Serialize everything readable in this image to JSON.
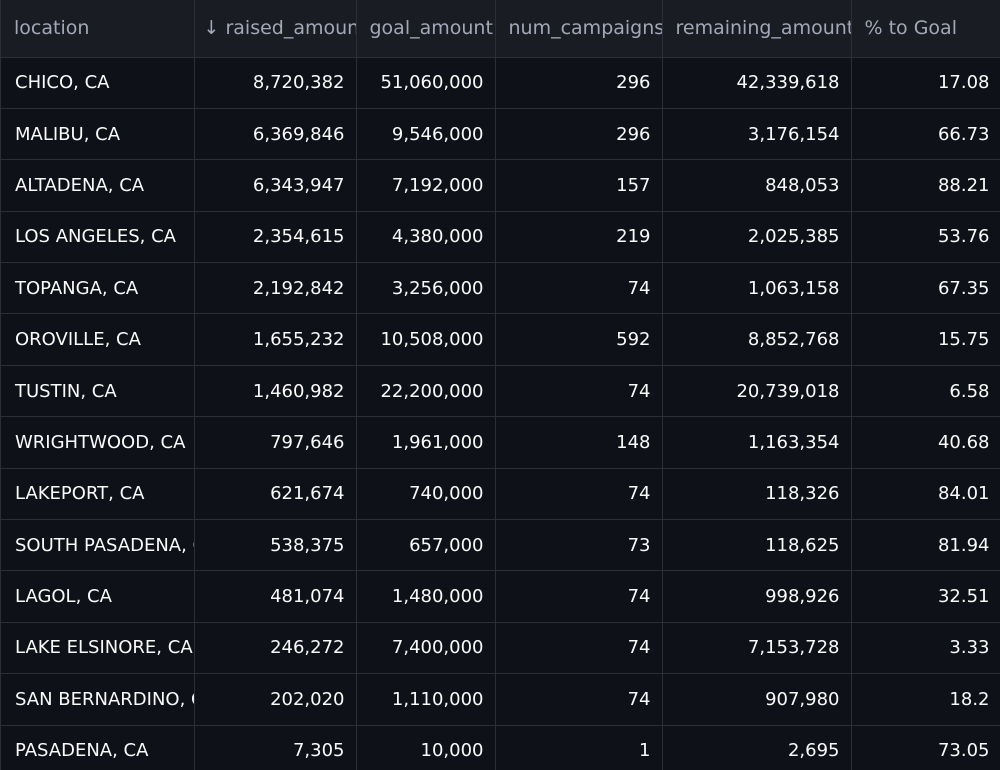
{
  "table": {
    "columns": [
      {
        "key": "location",
        "label": "location"
      },
      {
        "key": "raised_amount",
        "label": "↓ raised_amount"
      },
      {
        "key": "goal_amount",
        "label": "goal_amount"
      },
      {
        "key": "num_campaigns",
        "label": "num_campaigns"
      },
      {
        "key": "remaining_amount",
        "label": "remaining_amount"
      },
      {
        "key": "pct_to_goal",
        "label": "% to Goal"
      }
    ],
    "rows": [
      [
        "CHICO, CA",
        "8,720,382",
        "51,060,000",
        "296",
        "42,339,618",
        "17.08"
      ],
      [
        "MALIBU, CA",
        "6,369,846",
        "9,546,000",
        "296",
        "3,176,154",
        "66.73"
      ],
      [
        "ALTADENA, CA",
        "6,343,947",
        "7,192,000",
        "157",
        "848,053",
        "88.21"
      ],
      [
        "LOS ANGELES, CA",
        "2,354,615",
        "4,380,000",
        "219",
        "2,025,385",
        "53.76"
      ],
      [
        "TOPANGA, CA",
        "2,192,842",
        "3,256,000",
        "74",
        "1,063,158",
        "67.35"
      ],
      [
        "OROVILLE, CA",
        "1,655,232",
        "10,508,000",
        "592",
        "8,852,768",
        "15.75"
      ],
      [
        "TUSTIN, CA",
        "1,460,982",
        "22,200,000",
        "74",
        "20,739,018",
        "6.58"
      ],
      [
        "WRIGHTWOOD, CA",
        "797,646",
        "1,961,000",
        "148",
        "1,163,354",
        "40.68"
      ],
      [
        "LAKEPORT, CA",
        "621,674",
        "740,000",
        "74",
        "118,326",
        "84.01"
      ],
      [
        "SOUTH PASADENA, CA",
        "538,375",
        "657,000",
        "73",
        "118,625",
        "81.94"
      ],
      [
        "LAGOL, CA",
        "481,074",
        "1,480,000",
        "74",
        "998,926",
        "32.51"
      ],
      [
        "LAKE ELSINORE, CA",
        "246,272",
        "7,400,000",
        "74",
        "7,153,728",
        "3.33"
      ],
      [
        "SAN BERNARDINO, CA",
        "202,020",
        "1,110,000",
        "74",
        "907,980",
        "18.2"
      ],
      [
        "PASADENA, CA",
        "7,305",
        "10,000",
        "1",
        "2,695",
        "73.05"
      ]
    ]
  }
}
